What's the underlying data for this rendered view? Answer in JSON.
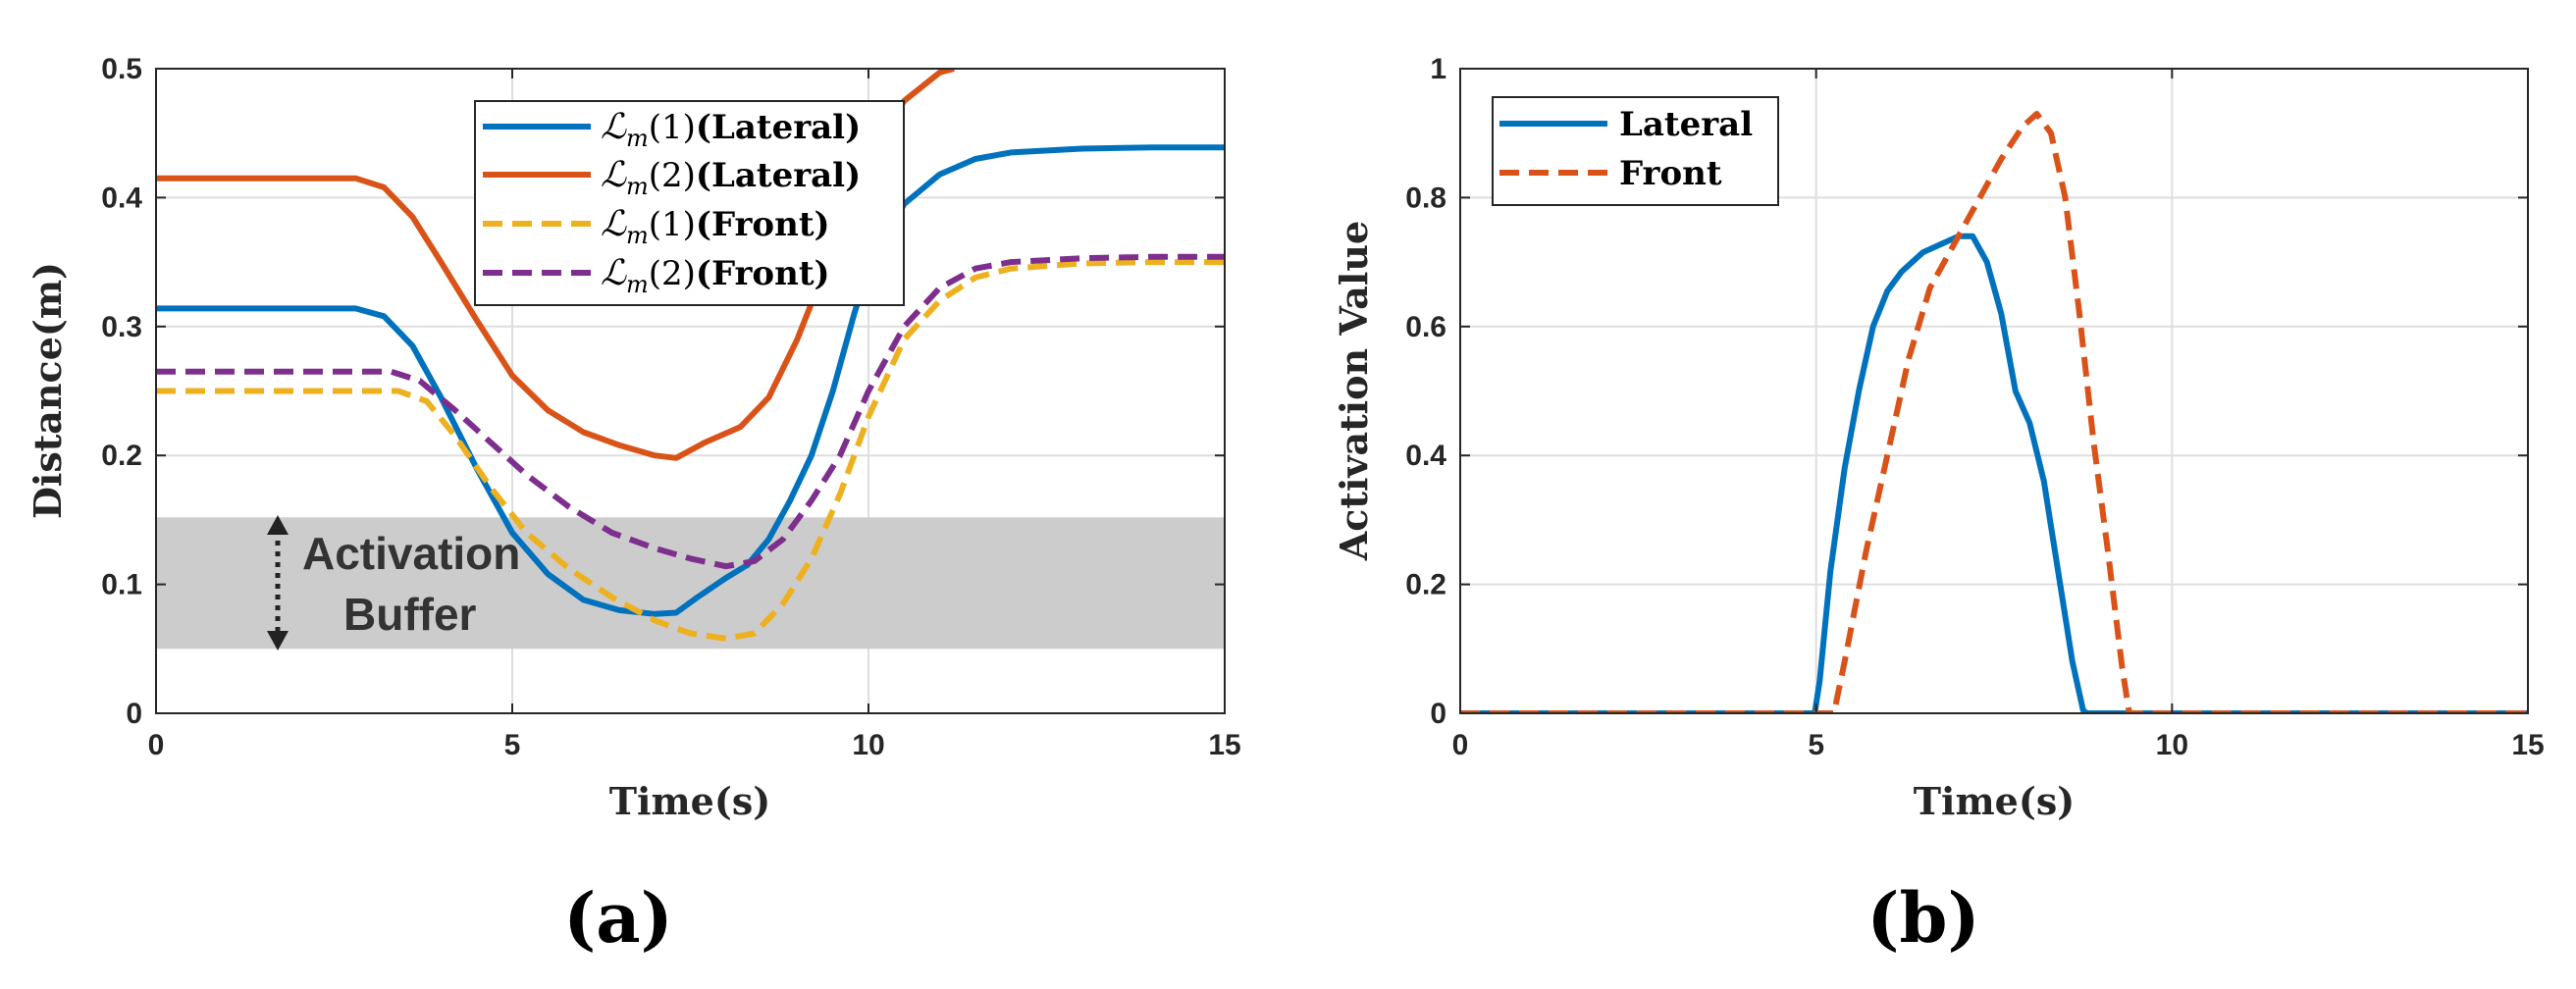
{
  "chart_data": [
    {
      "panel_label": "(a)",
      "type": "line",
      "xlabel": "Time(s)",
      "ylabel": "Distance(m)",
      "xlim": [
        0,
        15
      ],
      "ylim": [
        0,
        0.5
      ],
      "xticks": [
        0,
        5,
        10,
        15
      ],
      "xtick_labels": [
        "0",
        "5",
        "10",
        "15"
      ],
      "yticks": [
        0,
        0.1,
        0.2,
        0.3,
        0.4,
        0.5
      ],
      "ytick_labels": [
        "0",
        "0.1",
        "0.2",
        "0.3",
        "0.4",
        "0.5"
      ],
      "grid": true,
      "legend_position": "top-center",
      "shaded_band": {
        "y_range": [
          0.05,
          0.152
        ],
        "color": "#cccccc",
        "label_line1": "Activation",
        "label_line2": "Buffer"
      },
      "series": [
        {
          "name": "L_m(1)(Lateral)",
          "legend_script": "ℒ",
          "legend_sub": "m",
          "legend_arg": "(1)",
          "legend_tag": "(Lateral)",
          "color": "#0072BD",
          "dash": "solid",
          "x": [
            0,
            2.8,
            3.2,
            3.6,
            4.0,
            4.5,
            5.0,
            5.5,
            6.0,
            6.5,
            7.0,
            7.3,
            7.6,
            8.0,
            8.3,
            8.6,
            8.9,
            9.2,
            9.5,
            9.8,
            10.0,
            10.5,
            11.0,
            11.5,
            12.0,
            13.0,
            14.0,
            15.0
          ],
          "y": [
            0.314,
            0.314,
            0.308,
            0.285,
            0.245,
            0.19,
            0.14,
            0.108,
            0.088,
            0.08,
            0.077,
            0.078,
            0.09,
            0.105,
            0.115,
            0.135,
            0.165,
            0.2,
            0.25,
            0.31,
            0.345,
            0.395,
            0.418,
            0.43,
            0.435,
            0.438,
            0.439,
            0.439
          ]
        },
        {
          "name": "L_m(2)(Lateral)",
          "legend_script": "ℒ",
          "legend_sub": "m",
          "legend_arg": "(2)",
          "legend_tag": "(Lateral)",
          "color": "#D95319",
          "dash": "solid",
          "x": [
            0,
            2.8,
            3.2,
            3.6,
            4.0,
            4.5,
            5.0,
            5.5,
            6.0,
            6.5,
            7.0,
            7.3,
            7.7,
            8.2,
            8.6,
            9.0,
            9.5,
            10.0,
            10.5,
            11.0,
            11.2
          ],
          "y": [
            0.415,
            0.415,
            0.408,
            0.385,
            0.35,
            0.305,
            0.262,
            0.235,
            0.218,
            0.208,
            0.2,
            0.198,
            0.21,
            0.222,
            0.245,
            0.29,
            0.36,
            0.43,
            0.475,
            0.497,
            0.5
          ]
        },
        {
          "name": "L_m(1)(Front)",
          "legend_script": "ℒ",
          "legend_sub": "m",
          "legend_arg": "(1)",
          "legend_tag": "(Front)",
          "color": "#EDB120",
          "dash": "dashed",
          "x": [
            0,
            3.4,
            3.8,
            4.2,
            4.7,
            5.2,
            5.8,
            6.4,
            7.0,
            7.5,
            8.0,
            8.4,
            8.8,
            9.2,
            9.6,
            10.0,
            10.5,
            11.0,
            11.5,
            12.0,
            13.0,
            14.0,
            15.0
          ],
          "y": [
            0.25,
            0.25,
            0.242,
            0.215,
            0.175,
            0.14,
            0.112,
            0.09,
            0.072,
            0.062,
            0.058,
            0.062,
            0.085,
            0.12,
            0.17,
            0.23,
            0.29,
            0.32,
            0.338,
            0.345,
            0.349,
            0.35,
            0.35
          ]
        },
        {
          "name": "L_m(2)(Front)",
          "legend_script": "ℒ",
          "legend_sub": "m",
          "legend_arg": "(2)",
          "legend_tag": "(Front)",
          "color": "#7E2F8E",
          "dash": "dashed",
          "x": [
            0,
            3.3,
            3.7,
            4.2,
            4.7,
            5.2,
            5.8,
            6.4,
            7.0,
            7.5,
            8.0,
            8.4,
            8.8,
            9.2,
            9.6,
            10.0,
            10.5,
            11.0,
            11.5,
            12.0,
            13.0,
            14.0,
            15.0
          ],
          "y": [
            0.265,
            0.265,
            0.258,
            0.235,
            0.21,
            0.185,
            0.16,
            0.14,
            0.128,
            0.12,
            0.114,
            0.118,
            0.135,
            0.165,
            0.2,
            0.25,
            0.3,
            0.33,
            0.345,
            0.35,
            0.353,
            0.354,
            0.354
          ]
        }
      ]
    },
    {
      "panel_label": "(b)",
      "type": "line",
      "xlabel": "Time(s)",
      "ylabel": "Activation Value",
      "xlim": [
        0,
        15
      ],
      "ylim": [
        0,
        1
      ],
      "xticks": [
        0,
        5,
        10,
        15
      ],
      "xtick_labels": [
        "0",
        "5",
        "10",
        "15"
      ],
      "yticks": [
        0,
        0.2,
        0.4,
        0.6,
        0.8,
        1
      ],
      "ytick_labels": [
        "0",
        "0.2",
        "0.4",
        "0.6",
        "0.8",
        "1"
      ],
      "grid": true,
      "legend_position": "top-left",
      "series": [
        {
          "name": "Lateral",
          "color": "#0072BD",
          "dash": "solid",
          "x": [
            0,
            4.98,
            5.05,
            5.2,
            5.4,
            5.6,
            5.8,
            6.0,
            6.2,
            6.5,
            6.8,
            7.0,
            7.2,
            7.4,
            7.6,
            7.8,
            8.0,
            8.2,
            8.4,
            8.6,
            8.75,
            8.8,
            15
          ],
          "y": [
            0,
            0,
            0.05,
            0.22,
            0.38,
            0.5,
            0.6,
            0.655,
            0.685,
            0.715,
            0.73,
            0.74,
            0.74,
            0.7,
            0.62,
            0.5,
            0.45,
            0.36,
            0.22,
            0.08,
            0.005,
            0,
            0
          ]
        },
        {
          "name": "Front",
          "color": "#D95319",
          "dash": "dashed",
          "x": [
            0,
            5.25,
            5.4,
            5.7,
            6.0,
            6.3,
            6.6,
            7.0,
            7.3,
            7.6,
            7.9,
            8.1,
            8.3,
            8.5,
            8.7,
            8.9,
            9.1,
            9.3,
            9.4,
            15
          ],
          "y": [
            0,
            0,
            0.08,
            0.25,
            0.4,
            0.55,
            0.66,
            0.74,
            0.8,
            0.86,
            0.91,
            0.93,
            0.9,
            0.8,
            0.62,
            0.42,
            0.25,
            0.07,
            0,
            0
          ]
        }
      ]
    }
  ]
}
